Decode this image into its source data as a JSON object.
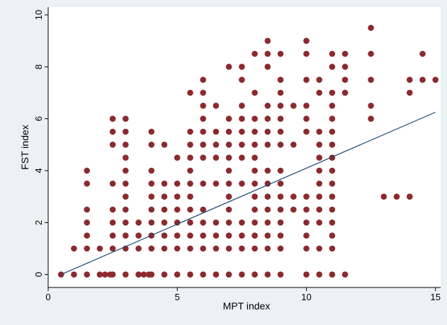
{
  "chart_data": {
    "type": "scatter",
    "title": "",
    "xlabel": "MPT index",
    "ylabel": "FST index",
    "xlim": [
      0,
      15.2
    ],
    "ylim": [
      -0.5,
      10.3
    ],
    "x_ticks": [
      0,
      5,
      10,
      15
    ],
    "y_ticks": [
      0,
      2,
      4,
      6,
      8,
      10
    ],
    "grid": false,
    "legend": "none",
    "colors": {
      "background": "#eaf2f3",
      "plot_background": "#ffffff",
      "marker": "#8b2a2e",
      "fit_line": "#1a476f",
      "axis": "#000000"
    },
    "fit_line": {
      "x": [
        0.5,
        15
      ],
      "y": [
        0.0,
        6.25
      ]
    },
    "points": [
      [
        0.5,
        0
      ],
      [
        1,
        0
      ],
      [
        1.5,
        0
      ],
      [
        2,
        0
      ],
      [
        2.2,
        0
      ],
      [
        2.4,
        0
      ],
      [
        2.5,
        0
      ],
      [
        3,
        0
      ],
      [
        3.5,
        0
      ],
      [
        3.7,
        0
      ],
      [
        3.9,
        0
      ],
      [
        4,
        0
      ],
      [
        4.5,
        0
      ],
      [
        5,
        0
      ],
      [
        5.5,
        0
      ],
      [
        6,
        0
      ],
      [
        6.5,
        0
      ],
      [
        7,
        0
      ],
      [
        7.5,
        0
      ],
      [
        8,
        0
      ],
      [
        8.5,
        0
      ],
      [
        9,
        0
      ],
      [
        10,
        0
      ],
      [
        10.5,
        0
      ],
      [
        11,
        0
      ],
      [
        11.5,
        0
      ],
      [
        1,
        1
      ],
      [
        1.5,
        1
      ],
      [
        2,
        1
      ],
      [
        2.5,
        1
      ],
      [
        3,
        1
      ],
      [
        3.5,
        1
      ],
      [
        4,
        1
      ],
      [
        4.5,
        1
      ],
      [
        5,
        1
      ],
      [
        5.5,
        1
      ],
      [
        6,
        1
      ],
      [
        6.5,
        1
      ],
      [
        7,
        1
      ],
      [
        7.5,
        1
      ],
      [
        8,
        1
      ],
      [
        8.5,
        1
      ],
      [
        9,
        1
      ],
      [
        10,
        1
      ],
      [
        10.5,
        1
      ],
      [
        11,
        1
      ],
      [
        1.5,
        1.5
      ],
      [
        2.5,
        1.5
      ],
      [
        3,
        1.5
      ],
      [
        3.5,
        1.5
      ],
      [
        4,
        1.5
      ],
      [
        4.5,
        1.5
      ],
      [
        5,
        1.5
      ],
      [
        5.5,
        1.5
      ],
      [
        6,
        1.5
      ],
      [
        6.5,
        1.5
      ],
      [
        7,
        1.5
      ],
      [
        7.5,
        1.5
      ],
      [
        8,
        1.5
      ],
      [
        8.5,
        1.5
      ],
      [
        9,
        1.5
      ],
      [
        10,
        1.5
      ],
      [
        11,
        1.5
      ],
      [
        1.5,
        2
      ],
      [
        2.5,
        2
      ],
      [
        3,
        2
      ],
      [
        3.5,
        2
      ],
      [
        4,
        2
      ],
      [
        4.5,
        2
      ],
      [
        5,
        2
      ],
      [
        5.5,
        2
      ],
      [
        6,
        2
      ],
      [
        6.5,
        2
      ],
      [
        7,
        2
      ],
      [
        7.5,
        2
      ],
      [
        8,
        2
      ],
      [
        8.5,
        2
      ],
      [
        9,
        2
      ],
      [
        10,
        2
      ],
      [
        10.5,
        2
      ],
      [
        11,
        2
      ],
      [
        1.5,
        2.5
      ],
      [
        2.5,
        2.5
      ],
      [
        3,
        2.5
      ],
      [
        4,
        2.5
      ],
      [
        4.5,
        2.5
      ],
      [
        5,
        2.5
      ],
      [
        5.5,
        2.5
      ],
      [
        6,
        2.5
      ],
      [
        7,
        2.5
      ],
      [
        8,
        2.5
      ],
      [
        8.5,
        2.5
      ],
      [
        9,
        2.5
      ],
      [
        9.5,
        2.5
      ],
      [
        10,
        2.5
      ],
      [
        10.5,
        2.5
      ],
      [
        11,
        2.5
      ],
      [
        3,
        3
      ],
      [
        4,
        3
      ],
      [
        4.5,
        3
      ],
      [
        5,
        3
      ],
      [
        5.5,
        3
      ],
      [
        7,
        3
      ],
      [
        8,
        3
      ],
      [
        8.5,
        3
      ],
      [
        9,
        3
      ],
      [
        9.5,
        3
      ],
      [
        10,
        3
      ],
      [
        10.5,
        3
      ],
      [
        11,
        3
      ],
      [
        13,
        3
      ],
      [
        13.5,
        3
      ],
      [
        14,
        3
      ],
      [
        1.5,
        3.5
      ],
      [
        2.5,
        3.5
      ],
      [
        3,
        3.5
      ],
      [
        4,
        3.5
      ],
      [
        4.5,
        3.5
      ],
      [
        5,
        3.5
      ],
      [
        5.5,
        3.5
      ],
      [
        6,
        3.5
      ],
      [
        6.5,
        3.5
      ],
      [
        7,
        3.5
      ],
      [
        7.5,
        3.5
      ],
      [
        8,
        3.5
      ],
      [
        8.5,
        3.5
      ],
      [
        9,
        3.5
      ],
      [
        10.5,
        3.5
      ],
      [
        11,
        3.5
      ],
      [
        1.5,
        4
      ],
      [
        3,
        4
      ],
      [
        4,
        4
      ],
      [
        5.5,
        4
      ],
      [
        7,
        4
      ],
      [
        8,
        4
      ],
      [
        8.5,
        4
      ],
      [
        9,
        4
      ],
      [
        10.5,
        4
      ],
      [
        11,
        4
      ],
      [
        3,
        4.5
      ],
      [
        5,
        4.5
      ],
      [
        5.5,
        4.5
      ],
      [
        6,
        4.5
      ],
      [
        6.5,
        4.5
      ],
      [
        7,
        4.5
      ],
      [
        7.5,
        4.5
      ],
      [
        8,
        4.5
      ],
      [
        10.5,
        4.5
      ],
      [
        11,
        4.5
      ],
      [
        2.5,
        5
      ],
      [
        3,
        5
      ],
      [
        4,
        5
      ],
      [
        4.5,
        5
      ],
      [
        5.5,
        5
      ],
      [
        6,
        5
      ],
      [
        6.5,
        5
      ],
      [
        7,
        5
      ],
      [
        7.5,
        5
      ],
      [
        8,
        5
      ],
      [
        8.5,
        5
      ],
      [
        9,
        5
      ],
      [
        9.5,
        5
      ],
      [
        10.5,
        5
      ],
      [
        11,
        5
      ],
      [
        2.5,
        5.5
      ],
      [
        3,
        5.5
      ],
      [
        4,
        5.5
      ],
      [
        5.5,
        5.5
      ],
      [
        6,
        5.5
      ],
      [
        6.5,
        5.5
      ],
      [
        7,
        5.5
      ],
      [
        7.5,
        5.5
      ],
      [
        8,
        5.5
      ],
      [
        8.5,
        5.5
      ],
      [
        9,
        5.5
      ],
      [
        10,
        5.5
      ],
      [
        10.5,
        5.5
      ],
      [
        11,
        5.5
      ],
      [
        2.5,
        6
      ],
      [
        3,
        6
      ],
      [
        6,
        6
      ],
      [
        7,
        6
      ],
      [
        7.5,
        6
      ],
      [
        8,
        6
      ],
      [
        8.5,
        6
      ],
      [
        9,
        6
      ],
      [
        10,
        6
      ],
      [
        11,
        6
      ],
      [
        12.5,
        6
      ],
      [
        6,
        6.5
      ],
      [
        6.5,
        6.5
      ],
      [
        7.5,
        6.5
      ],
      [
        8.5,
        6.5
      ],
      [
        9,
        6.5
      ],
      [
        9.5,
        6.5
      ],
      [
        10,
        6.5
      ],
      [
        11,
        6.5
      ],
      [
        12.5,
        6.5
      ],
      [
        5.5,
        7
      ],
      [
        6,
        7
      ],
      [
        8,
        7
      ],
      [
        9,
        7
      ],
      [
        10.5,
        7
      ],
      [
        11,
        7
      ],
      [
        11.5,
        7
      ],
      [
        14,
        7
      ],
      [
        6,
        7.5
      ],
      [
        7.5,
        7.5
      ],
      [
        9,
        7.5
      ],
      [
        10,
        7.5
      ],
      [
        10.5,
        7.5
      ],
      [
        11.5,
        7.5
      ],
      [
        12.5,
        7.5
      ],
      [
        14,
        7.5
      ],
      [
        14.5,
        7.5
      ],
      [
        15,
        7.5
      ],
      [
        7,
        8
      ],
      [
        7.5,
        8
      ],
      [
        8.5,
        8
      ],
      [
        11,
        8
      ],
      [
        11.5,
        8
      ],
      [
        8,
        8.5
      ],
      [
        8.5,
        8.5
      ],
      [
        9,
        8.5
      ],
      [
        10,
        8.5
      ],
      [
        11,
        8.5
      ],
      [
        11.5,
        8.5
      ],
      [
        12.5,
        8.5
      ],
      [
        14.5,
        8.5
      ],
      [
        8.5,
        9
      ],
      [
        10,
        9
      ],
      [
        12.5,
        9.5
      ]
    ]
  }
}
